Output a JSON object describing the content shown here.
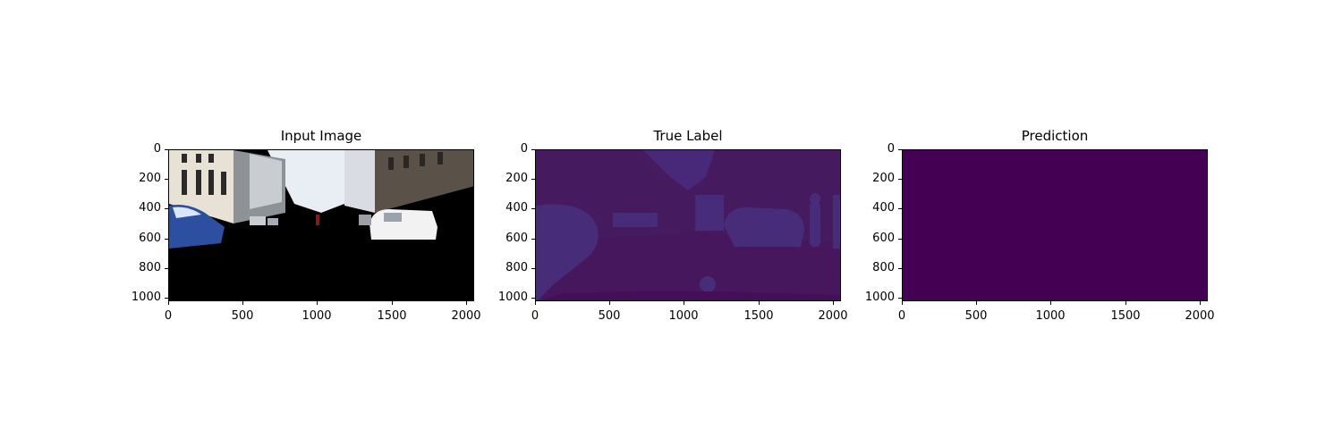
{
  "figure": {
    "panels": [
      {
        "title": "Input Image"
      },
      {
        "title": "True Label"
      },
      {
        "title": "Prediction"
      }
    ]
  },
  "axes": {
    "y_ticks": [
      "0",
      "200",
      "400",
      "600",
      "800",
      "1000"
    ],
    "x_ticks": [
      "0",
      "500",
      "1000",
      "1500",
      "2000"
    ]
  },
  "colors": {
    "prediction_fill": "#440154",
    "label_background": "#461a5e",
    "label_region": "#472c7a",
    "label_road": "#47175e"
  }
}
